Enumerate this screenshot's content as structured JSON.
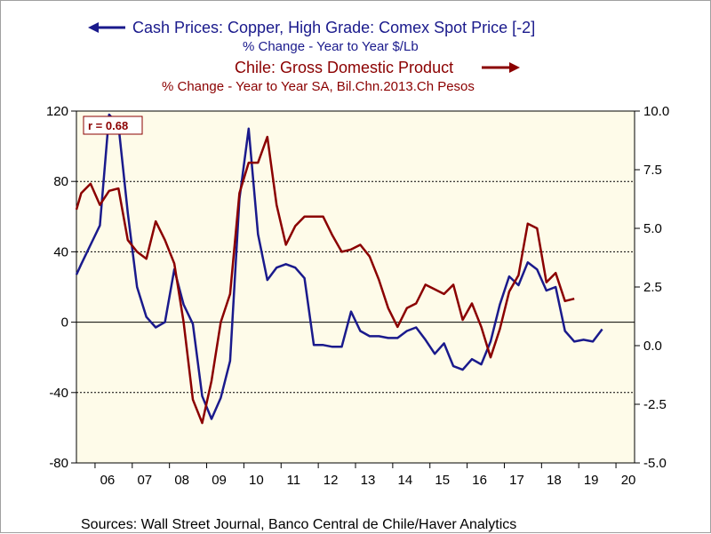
{
  "chart_data": {
    "type": "line",
    "titles": {
      "series1_title": "Cash Prices: Copper, High Grade: Comex Spot Price [-2]",
      "series1_subtitle": "% Change - Year to Year    $/Lb",
      "series2_title": "Chile: Gross Domestic Product",
      "series2_subtitle": "% Change - Year to Year    SA, Bil.Chn.2013.Ch Pesos"
    },
    "annotation": "r = 0.68",
    "source": "Sources:  Wall Street Journal, Banco Central de Chile/Haver Analytics",
    "x_axis": {
      "range": [
        2005.5,
        2020.5
      ],
      "tick_labels": [
        "06",
        "07",
        "08",
        "09",
        "10",
        "11",
        "12",
        "13",
        "14",
        "15",
        "16",
        "17",
        "18",
        "19",
        "20"
      ]
    },
    "y_left": {
      "range": [
        -80,
        120
      ],
      "ticks": [
        "120",
        "80",
        "40",
        "0",
        "-40",
        "-80"
      ]
    },
    "y_right": {
      "range": [
        -5,
        10
      ],
      "ticks": [
        "10.0",
        "7.5",
        "5.0",
        "2.5",
        "0.0",
        "-2.5",
        "-5.0"
      ]
    },
    "grid": {
      "horizontal_dashed": true,
      "zero_line_solid": true
    },
    "series": [
      {
        "name": "Cash Prices: Copper, High Grade: Comex Spot Price [-2]",
        "axis": "left",
        "color": "#1a1a8c",
        "x": [
          2005.5,
          2005.63,
          2005.88,
          2006.13,
          2006.38,
          2006.63,
          2006.88,
          2007.13,
          2007.38,
          2007.63,
          2007.88,
          2008.13,
          2008.38,
          2008.63,
          2008.88,
          2009.13,
          2009.38,
          2009.63,
          2009.88,
          2010.13,
          2010.38,
          2010.63,
          2010.88,
          2011.13,
          2011.38,
          2011.63,
          2011.88,
          2012.13,
          2012.38,
          2012.63,
          2012.88,
          2013.13,
          2013.38,
          2013.63,
          2013.88,
          2014.13,
          2014.38,
          2014.63,
          2014.88,
          2015.13,
          2015.38,
          2015.63,
          2015.88,
          2016.13,
          2016.38,
          2016.63,
          2016.88,
          2017.13,
          2017.38,
          2017.63,
          2017.88,
          2018.13,
          2018.38,
          2018.63,
          2018.88,
          2019.13,
          2019.38,
          2019.63,
          2019.88,
          2020.13
        ],
        "y": [
          27,
          33,
          44,
          55,
          118,
          112,
          62,
          20,
          3,
          -3,
          0,
          30,
          10,
          -1,
          -42,
          -55,
          -43,
          -22,
          70,
          110,
          50,
          24,
          31,
          33,
          31,
          25,
          -13,
          -13,
          -14,
          -14,
          6,
          -5,
          -8,
          -8,
          -9,
          -9,
          -5,
          -3,
          -10,
          -18,
          -12,
          -25,
          -27,
          -21,
          -24,
          -11,
          10,
          26,
          21,
          34,
          30,
          18,
          20,
          -5,
          -11,
          -10,
          -11,
          -4,
          null,
          null
        ]
      },
      {
        "name": "Chile: Gross Domestic Product",
        "axis": "right",
        "color": "#8b0000",
        "x": [
          2005.5,
          2005.63,
          2005.88,
          2006.13,
          2006.38,
          2006.63,
          2006.88,
          2007.13,
          2007.38,
          2007.63,
          2007.88,
          2008.13,
          2008.38,
          2008.63,
          2008.88,
          2009.13,
          2009.38,
          2009.63,
          2009.88,
          2010.13,
          2010.38,
          2010.63,
          2010.88,
          2011.13,
          2011.38,
          2011.63,
          2011.88,
          2012.13,
          2012.38,
          2012.63,
          2012.88,
          2013.13,
          2013.38,
          2013.63,
          2013.88,
          2014.13,
          2014.38,
          2014.63,
          2014.88,
          2015.13,
          2015.38,
          2015.63,
          2015.88,
          2016.13,
          2016.38,
          2016.63,
          2016.88,
          2017.13,
          2017.38,
          2017.63,
          2017.88,
          2018.13,
          2018.38,
          2018.63,
          2018.88,
          2019.13,
          2019.38
        ],
        "y": [
          5.8,
          6.5,
          6.9,
          6.0,
          6.6,
          6.7,
          4.5,
          4.0,
          3.7,
          5.3,
          4.5,
          3.5,
          1.0,
          -2.3,
          -3.3,
          -1.5,
          1.0,
          2.2,
          6.5,
          7.8,
          7.8,
          8.9,
          6.0,
          4.3,
          5.1,
          5.5,
          5.5,
          5.5,
          4.7,
          4.0,
          4.1,
          4.3,
          3.8,
          2.8,
          1.6,
          0.8,
          1.6,
          1.8,
          2.6,
          2.4,
          2.2,
          2.6,
          1.1,
          1.8,
          0.8,
          -0.5,
          0.7,
          2.3,
          3.0,
          5.2,
          5.0,
          2.7,
          3.1,
          1.9,
          2.0,
          null,
          null
        ]
      }
    ]
  }
}
